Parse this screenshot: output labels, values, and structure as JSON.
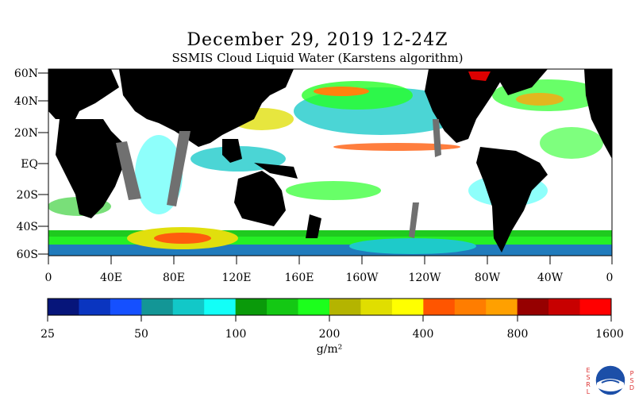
{
  "title": "December 29, 2019 12-24Z",
  "subtitle": "SSMIS Cloud Liquid Water (Karstens algorithm)",
  "map": {
    "lat_labels": [
      "60N",
      "40N",
      "20N",
      "EQ",
      "20S",
      "40S",
      "60S"
    ],
    "lon_labels": [
      "0",
      "40E",
      "80E",
      "120E",
      "160E",
      "160W",
      "120W",
      "80W",
      "40W",
      "0"
    ]
  },
  "legend": {
    "tick_labels": [
      "25",
      "50",
      "100",
      "200",
      "400",
      "800",
      "1600"
    ],
    "unit": "g/m²",
    "colors": [
      "#06157a",
      "#0a35c0",
      "#1550ff",
      "#139696",
      "#12c8c8",
      "#12fff7",
      "#0a9a0a",
      "#14c814",
      "#1cff1c",
      "#b4b400",
      "#e0de00",
      "#ffff00",
      "#ff5500",
      "#ff7d00",
      "#ffa000",
      "#960000",
      "#c80000",
      "#ff0000"
    ]
  },
  "logo": {
    "left_letters": [
      "E",
      "S",
      "R",
      "L"
    ],
    "right_letters": [
      "P",
      "S",
      "D"
    ],
    "mark_text": "NOAA"
  }
}
